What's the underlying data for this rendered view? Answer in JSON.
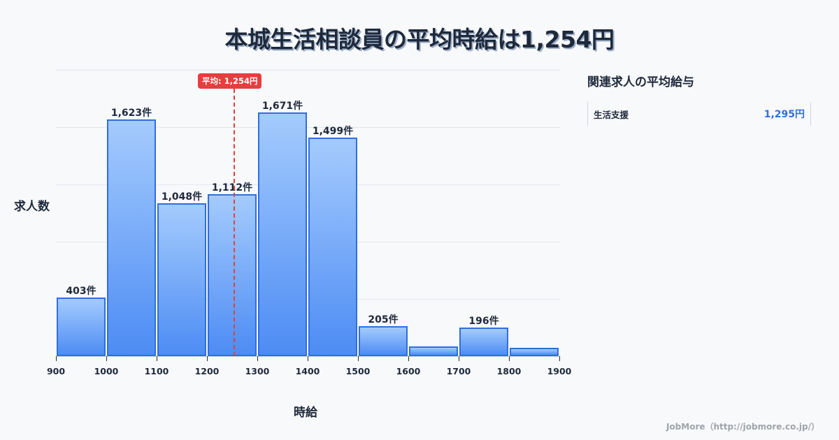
{
  "title": "本城生活相談員の平均時給は1,254円",
  "average_badge": "平均: 1,254円",
  "ylabel": "求人数",
  "xlabel": "時給",
  "side_panel": {
    "title": "関連求人の平均給与",
    "items": [
      {
        "name": "生活支援",
        "value": "1,295円"
      }
    ]
  },
  "footer": "JobMore（http://jobmore.co.jp/）",
  "colors": {
    "bar_border": "#2f6ee0",
    "bar_top": "#a4cbfd",
    "bar_bottom": "#4d8cf4",
    "average_line": "#e53e3e",
    "text": "#1e293b"
  },
  "chart_data": {
    "type": "bar",
    "title": "本城生活相談員の平均時給は1,254円",
    "xlabel": "時給",
    "ylabel": "求人数",
    "bins": [
      [
        900,
        1000
      ],
      [
        1000,
        1100
      ],
      [
        1100,
        1200
      ],
      [
        1200,
        1300
      ],
      [
        1300,
        1400
      ],
      [
        1400,
        1500
      ],
      [
        1500,
        1600
      ],
      [
        1600,
        1700
      ],
      [
        1700,
        1800
      ],
      [
        1800,
        1900
      ]
    ],
    "categories": [
      "900-1000",
      "1000-1100",
      "1100-1200",
      "1200-1300",
      "1300-1400",
      "1400-1500",
      "1500-1600",
      "1600-1700",
      "1700-1800",
      "1800-1900"
    ],
    "values": [
      403,
      1623,
      1048,
      1112,
      1671,
      1499,
      205,
      67,
      196,
      57
    ],
    "labels": [
      "403件",
      "1,623件",
      "1,048件",
      "1,112件",
      "1,671件",
      "1,499件",
      "205件",
      "",
      "196件",
      ""
    ],
    "x_ticks": [
      "900",
      "1000",
      "1100",
      "1200",
      "1300",
      "1400",
      "1500",
      "1600",
      "1700",
      "1800",
      "1900"
    ],
    "average": 1254,
    "average_label": "平均: 1,254円",
    "grid": true,
    "ylim": [
      0,
      2000
    ]
  }
}
